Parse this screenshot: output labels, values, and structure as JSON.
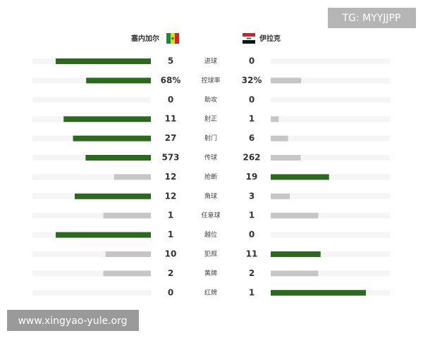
{
  "header": {
    "home": "塞内加尔",
    "away": "伊拉克"
  },
  "watermarks": {
    "top": "TG: MYYJJPP",
    "bottom": "www.xingyao-yule.org"
  },
  "rows": [
    {
      "label": "进球",
      "home": 5,
      "away": 0
    },
    {
      "label": "控球率",
      "home": 68,
      "away": 32,
      "home_label": "68%",
      "away_label": "32%"
    },
    {
      "label": "助攻",
      "home": 0,
      "away": 0
    },
    {
      "label": "射正",
      "home": 11,
      "away": 1
    },
    {
      "label": "射门",
      "home": 27,
      "away": 6
    },
    {
      "label": "传球",
      "home": 573,
      "away": 262
    },
    {
      "label": "抢断",
      "home": 12,
      "away": 19
    },
    {
      "label": "角球",
      "home": 12,
      "away": 3
    },
    {
      "label": "任意球",
      "home": 1,
      "away": 1
    },
    {
      "label": "越位",
      "home": 1,
      "away": 0
    },
    {
      "label": "犯规",
      "home": 10,
      "away": 11
    },
    {
      "label": "黄牌",
      "home": 2,
      "away": 2
    },
    {
      "label": "红牌",
      "home": 0,
      "away": 1
    }
  ]
}
